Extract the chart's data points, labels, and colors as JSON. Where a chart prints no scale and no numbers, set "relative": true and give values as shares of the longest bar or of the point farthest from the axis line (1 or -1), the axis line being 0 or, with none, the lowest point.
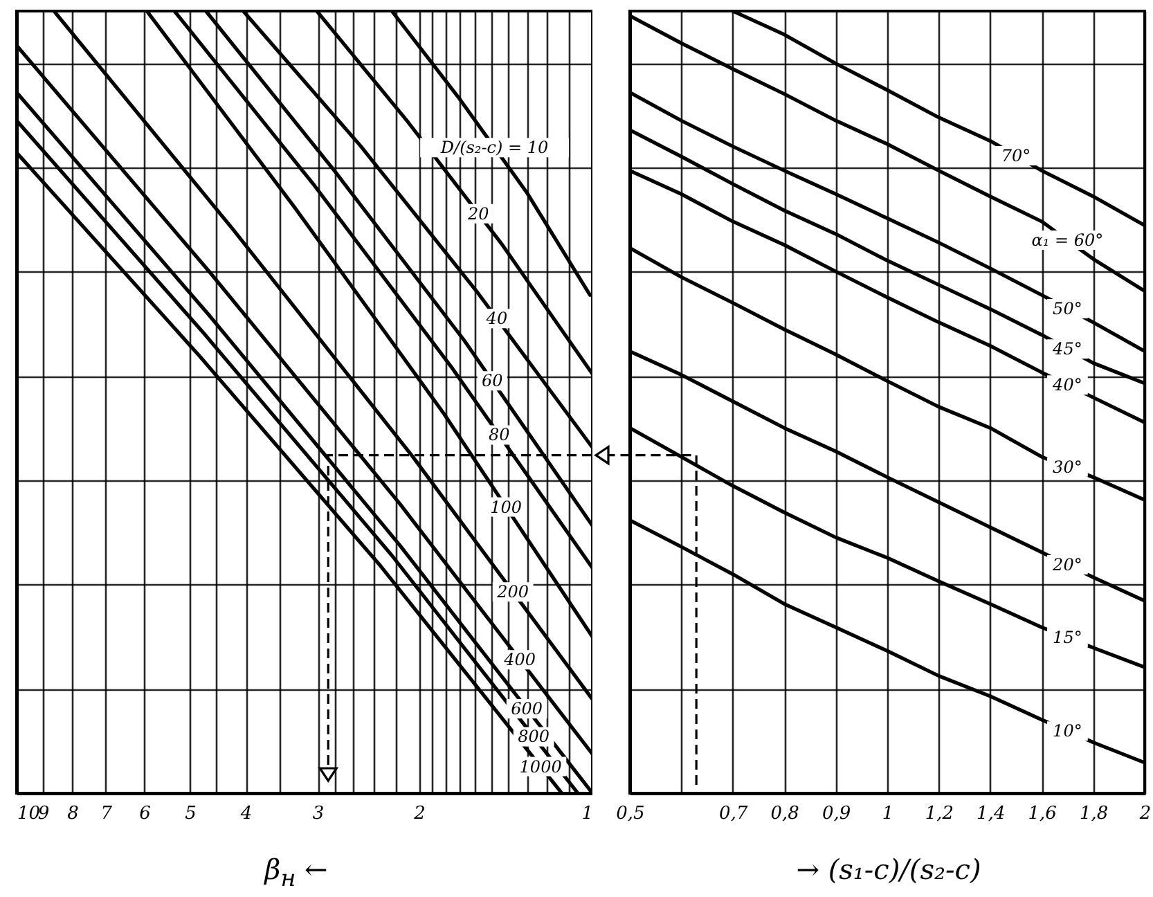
{
  "chart_data": [
    {
      "type": "line",
      "xlabel": "β$_{н}$ ←",
      "log": "x",
      "relative": true,
      "grid": true,
      "xlim": [
        10,
        1
      ],
      "xticks": [
        10,
        9,
        8,
        7,
        6,
        5,
        {
          "value": 4.5,
          "label": null
        },
        4,
        {
          "value": 3.5,
          "label": null
        },
        3,
        {
          "value": 2.8,
          "label": null
        },
        {
          "value": 2.6,
          "label": null
        },
        {
          "value": 2.4,
          "label": null
        },
        {
          "value": 2.2,
          "label": null
        },
        2,
        {
          "value": 1.9,
          "label": null
        },
        {
          "value": 1.8,
          "label": null
        },
        {
          "value": 1.7,
          "label": null
        },
        {
          "value": 1.6,
          "label": null
        },
        {
          "value": 1.5,
          "label": null
        },
        {
          "value": 1.4,
          "label": null
        },
        {
          "value": 1.3,
          "label": null
        },
        {
          "value": 1.2,
          "label": null
        },
        {
          "value": 1.1,
          "label": null
        },
        1
      ],
      "series": [
        {
          "name": "D/(s₂-c) = 10",
          "color": "#000000",
          "x": [
            2.23,
            1.71,
            1.3,
            1.01
          ],
          "values": [
            1,
            0.89,
            0.768,
            0.637
          ]
        },
        {
          "name": "20",
          "color": "#000000",
          "x": [
            3.01,
            2.09,
            1.44,
            1
          ],
          "values": [
            1,
            0.858,
            0.703,
            0.536
          ]
        },
        {
          "name": "40",
          "color": "#000000",
          "x": [
            4.04,
            2.53,
            1.59,
            1
          ],
          "values": [
            1,
            0.828,
            0.642,
            0.442
          ]
        },
        {
          "name": "60",
          "color": "#000000",
          "x": [
            4.69,
            2.8,
            1.67,
            1
          ],
          "values": [
            1,
            0.795,
            0.579,
            0.342
          ]
        },
        {
          "name": "80",
          "color": "#000000",
          "x": [
            5.32,
            3.04,
            1.75,
            1
          ],
          "values": [
            1,
            0.777,
            0.543,
            0.288
          ]
        },
        {
          "name": "100",
          "color": "#000000",
          "x": [
            5.94,
            3.29,
            1.81,
            1
          ],
          "values": [
            1,
            0.749,
            0.485,
            0.2
          ]
        },
        {
          "name": "200",
          "color": "#000000",
          "x": [
            8.61,
            4.2,
            2.05,
            1
          ],
          "values": [
            1,
            0.72,
            0.43,
            0.12
          ]
        },
        {
          "name": "400",
          "color": "#000000",
          "x": [
            10,
            4.63,
            2.16,
            1
          ],
          "values": [
            0.956,
            0.667,
            0.37,
            0.05
          ]
        },
        {
          "name": "600",
          "color": "#000000",
          "x": [
            10,
            4.63,
            2.16,
            1
          ],
          "values": [
            0.896,
            0.611,
            0.317,
            0
          ]
        },
        {
          "name": "800",
          "color": "#000000",
          "x": [
            10,
            4.73,
            2.23,
            1.06
          ],
          "values": [
            0.86,
            0.588,
            0.304,
            0
          ]
        },
        {
          "name": "1000",
          "color": "#000000",
          "x": [
            10,
            4.84,
            2.33,
            1.13
          ],
          "values": [
            0.819,
            0.561,
            0.29,
            0
          ]
        }
      ]
    },
    {
      "type": "line",
      "xlabel": "→ (s₁-c)/(s₂-c)",
      "relative": true,
      "grid": true,
      "categories": [
        "0,5",
        null,
        "0,7",
        "0,8",
        "0,9",
        "1",
        "1,2",
        "1,4",
        "1,6",
        "1,8",
        "2"
      ],
      "series": [
        {
          "name": "70°",
          "color": "#000000",
          "values": [
            null,
            null,
            1,
            0.97,
            0.933,
            0.899,
            0.864,
            0.834,
            0.796,
            0.763,
            0.726
          ]
        },
        {
          "name": "α₁ = 60°",
          "color": "#000000",
          "values": [
            0.994,
            0.959,
            0.926,
            0.894,
            0.86,
            0.83,
            0.796,
            0.763,
            0.731,
            0.683,
            0.642
          ]
        },
        {
          "name": "50°",
          "color": "#000000",
          "values": [
            0.896,
            0.86,
            0.827,
            0.796,
            0.766,
            0.735,
            0.704,
            0.671,
            0.637,
            0.602,
            0.565
          ]
        },
        {
          "name": "45°",
          "color": "#000000",
          "values": [
            0.848,
            0.814,
            0.779,
            0.745,
            0.715,
            0.681,
            0.65,
            0.619,
            0.586,
            0.55,
            0.524
          ]
        },
        {
          "name": "40°",
          "color": "#000000",
          "values": [
            0.796,
            0.766,
            0.731,
            0.701,
            0.667,
            0.634,
            0.602,
            0.572,
            0.538,
            0.506,
            0.474
          ]
        },
        {
          "name": "30°",
          "color": "#000000",
          "values": [
            0.697,
            0.66,
            0.627,
            0.593,
            0.561,
            0.527,
            0.494,
            0.467,
            0.43,
            0.404,
            0.375
          ]
        },
        {
          "name": "20°",
          "color": "#000000",
          "values": [
            0.565,
            0.535,
            0.501,
            0.467,
            0.437,
            0.404,
            0.372,
            0.34,
            0.308,
            0.276,
            0.246
          ]
        },
        {
          "name": "15°",
          "color": "#000000",
          "values": [
            0.467,
            0.43,
            0.393,
            0.359,
            0.327,
            0.301,
            0.271,
            0.242,
            0.212,
            0.186,
            0.161
          ]
        },
        {
          "name": "10°",
          "color": "#000000",
          "values": [
            0.349,
            0.315,
            0.28,
            0.242,
            0.212,
            0.182,
            0.15,
            0.124,
            0.094,
            0.065,
            0.039
          ]
        }
      ]
    }
  ]
}
